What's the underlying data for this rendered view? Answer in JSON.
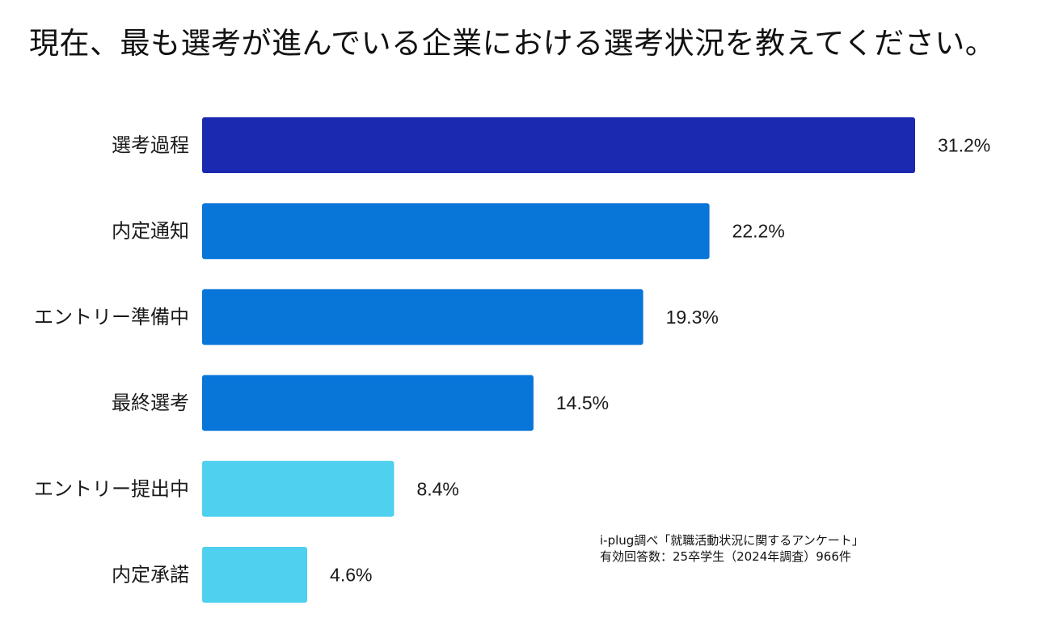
{
  "chart_data": {
    "type": "bar",
    "orientation": "horizontal",
    "title": "現在、最も選考が進んでいる企業における選考状況を教えてください。",
    "categories": [
      "選考過程",
      "内定通知",
      "エントリー準備中",
      "最終選考",
      "エントリー提出中",
      "内定承諾"
    ],
    "values": [
      31.2,
      22.2,
      19.3,
      14.5,
      8.4,
      4.6
    ],
    "value_labels": [
      "31.2%",
      "22.2%",
      "19.3%",
      "14.5%",
      "8.4%",
      "4.6%"
    ],
    "bar_colors": [
      "#1a29b0",
      "#0875d9",
      "#0875d9",
      "#0875d9",
      "#4fd0ee",
      "#4fd0ee"
    ],
    "xlim": [
      0,
      31.2
    ],
    "xlabel": "",
    "ylabel": "",
    "grid": false,
    "legend": "none"
  },
  "source_note": {
    "line1": "i-plug調べ「就職活動状況に関するアンケート」",
    "line2": "有効回答数：25卒学生（2024年調査）966件"
  }
}
